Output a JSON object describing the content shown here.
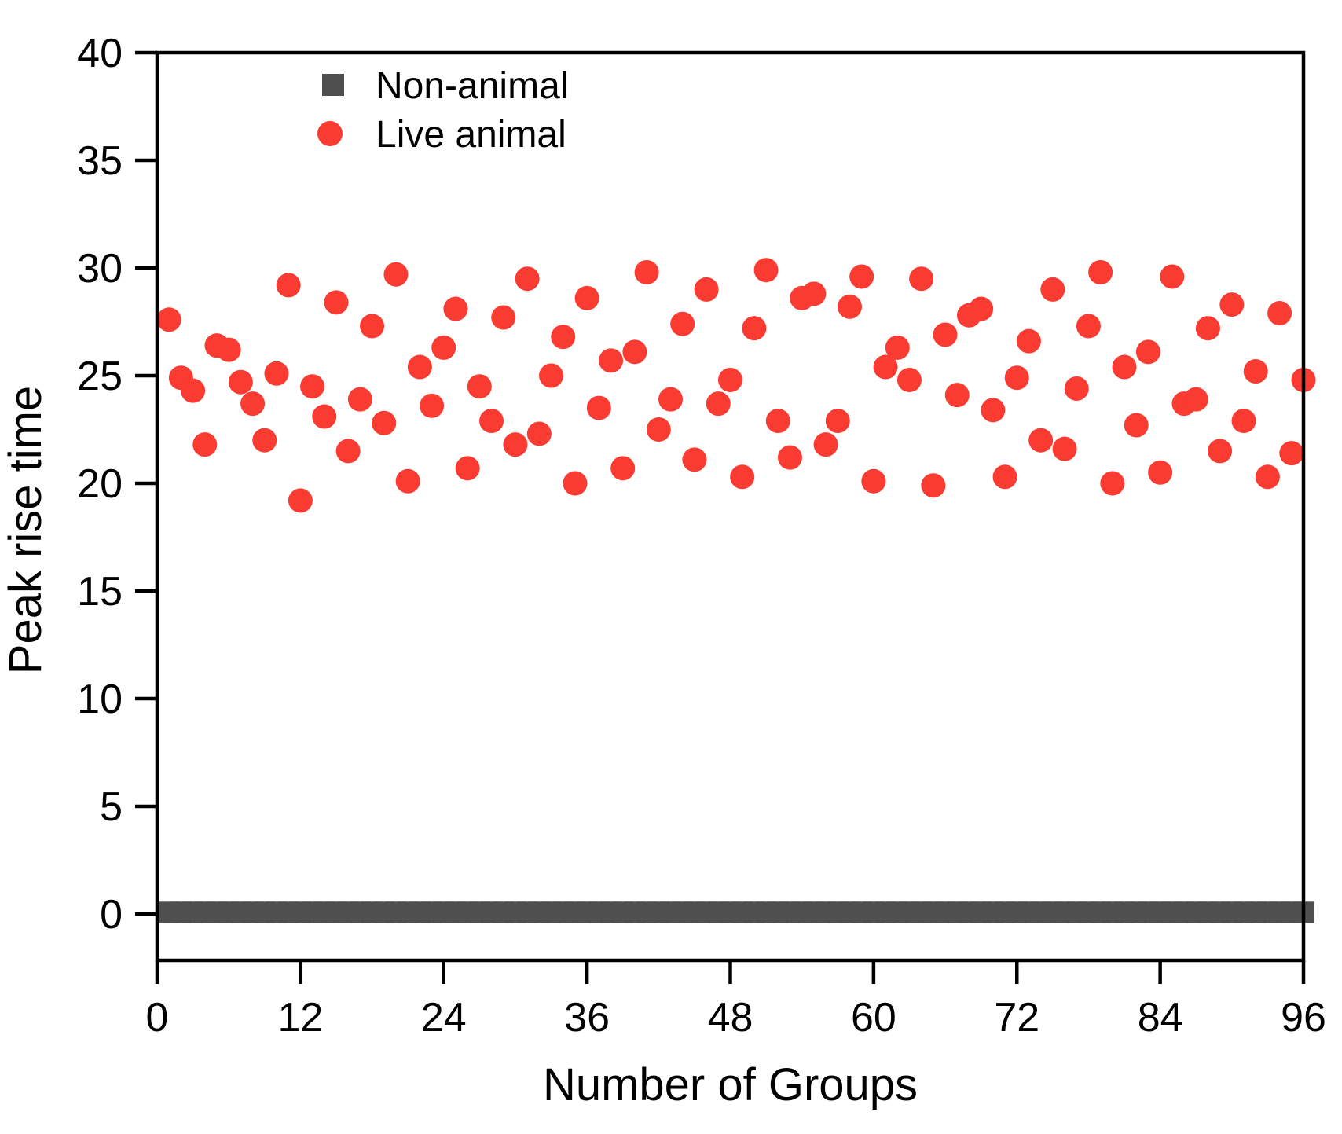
{
  "chart_data": {
    "type": "scatter",
    "title": "",
    "xlabel": "Number of Groups",
    "ylabel": "Peak rise time",
    "x_axis": {
      "min": 0,
      "max": 96,
      "ticks": [
        0,
        12,
        24,
        36,
        48,
        60,
        72,
        84,
        96
      ]
    },
    "y_axis": {
      "min": -2.15,
      "max": 40,
      "ticks": [
        0,
        5,
        10,
        15,
        20,
        25,
        30,
        35,
        40
      ]
    },
    "grid": "off",
    "legend_position": "top-left-inside",
    "legend": [
      {
        "label": "Non-animal",
        "marker": "square",
        "color": "#4F4F4F"
      },
      {
        "label": "Live animal",
        "marker": "circle",
        "color": "#F93B32"
      }
    ],
    "series": [
      {
        "name": "Non-animal",
        "marker": "square",
        "color": "#4F4F4F",
        "x_start": 1,
        "x_end": 96,
        "count": 96,
        "y_constant": 0.08,
        "note": "96 overlapping square markers at y≈0 forming a continuous dark band from x=0 to x=96"
      },
      {
        "name": "Live animal",
        "marker": "circle",
        "color": "#F93B32",
        "x_start": 1,
        "x_end": 96,
        "y": [
          27.6,
          24.9,
          24.3,
          21.8,
          26.4,
          26.2,
          24.7,
          23.7,
          22.0,
          25.1,
          29.2,
          19.2,
          24.5,
          23.1,
          28.4,
          21.5,
          23.9,
          27.3,
          22.8,
          29.7,
          20.1,
          25.4,
          23.6,
          26.3,
          28.1,
          20.7,
          24.5,
          22.9,
          27.7,
          21.8,
          29.5,
          22.3,
          25.0,
          26.8,
          20.0,
          28.6,
          23.5,
          25.7,
          20.7,
          26.1,
          29.8,
          22.5,
          23.9,
          27.4,
          21.1,
          29.0,
          23.7,
          24.8,
          20.3,
          27.2,
          29.9,
          22.9,
          21.2,
          28.6,
          28.8,
          21.8,
          22.9,
          28.2,
          29.6,
          20.1,
          25.4,
          26.3,
          24.8,
          29.5,
          19.9,
          26.9,
          24.1,
          27.8,
          28.1,
          23.4,
          20.3,
          24.9,
          26.6,
          22.0,
          29.0,
          21.6,
          24.4,
          27.3,
          29.8,
          20.0,
          25.4,
          22.7,
          26.1,
          20.5,
          29.6,
          23.7,
          23.9,
          27.2,
          21.5,
          28.3,
          22.9,
          25.2,
          20.3,
          27.9,
          21.4,
          24.8
        ]
      }
    ],
    "colors": {
      "background": "#FFFFFF",
      "frame": "#000000",
      "text": "#000000",
      "non_animal": "#4F4F4F",
      "live_animal": "#F93B32"
    }
  }
}
